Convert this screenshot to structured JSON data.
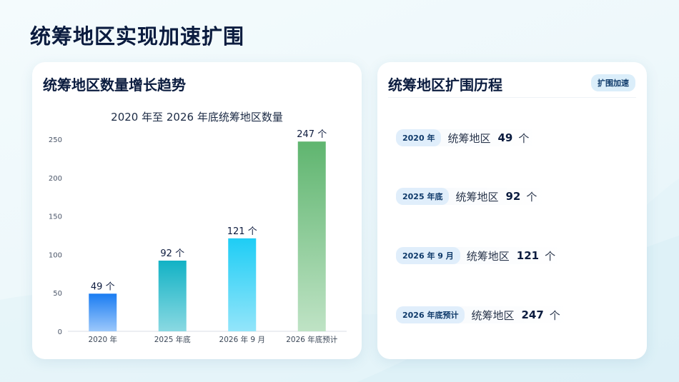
{
  "page_title": "统筹地区实现加速扩围",
  "left_card": {
    "title": "统筹地区数量增长趋势"
  },
  "right_card": {
    "title": "统筹地区扩围历程",
    "badge": "扩围加速",
    "items": [
      {
        "year": "2020 年",
        "label": "统筹地区",
        "value": "49",
        "unit": "个"
      },
      {
        "year": "2025 年底",
        "label": "统筹地区",
        "value": "92",
        "unit": "个"
      },
      {
        "year": "2026 年 9 月",
        "label": "统筹地区",
        "value": "121",
        "unit": "个"
      },
      {
        "year": "2026 年底预计",
        "label": "统筹地区",
        "value": "247",
        "unit": "个"
      }
    ]
  },
  "chart_data": {
    "type": "bar",
    "title": "2020 年至 2026 年底统筹地区数量",
    "categories": [
      "2020 年",
      "2025 年底",
      "2026 年 9 月",
      "2026 年底预计"
    ],
    "values": [
      49,
      92,
      121,
      247
    ],
    "data_labels": [
      "49 个",
      "92 个",
      "121 个",
      "247 个"
    ],
    "yticks": [
      0,
      50,
      100,
      150,
      200,
      250
    ],
    "ylim": [
      0,
      250
    ],
    "xlabel": "",
    "ylabel": "",
    "grid": false,
    "colors": [
      {
        "top": "#1a7cf2",
        "bottom": "#9cc8fb"
      },
      {
        "top": "#12b2c5",
        "bottom": "#8ad9e2"
      },
      {
        "top": "#1ecdf5",
        "bottom": "#93e5fa"
      },
      {
        "top": "#5fb56f",
        "bottom": "#bfe3c5"
      }
    ]
  }
}
